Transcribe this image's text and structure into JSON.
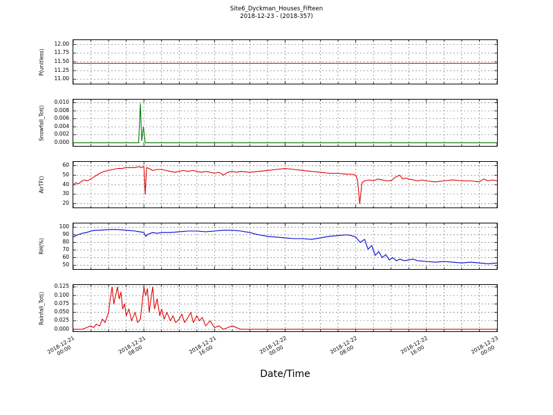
{
  "header": {
    "title": "Site6_Dyckman_Houses_Fifteen",
    "subtitle": "2018-12-23 - (2018-357)"
  },
  "x_axis": {
    "label": "Date/Time",
    "range_hours": [
      0,
      48
    ],
    "grid_interval_hours": 2,
    "major_tick_hours": [
      0,
      8,
      16,
      24,
      32,
      40,
      48
    ],
    "major_tick_labels": [
      [
        "2018-12-21",
        "00:00"
      ],
      [
        "2018-12-21",
        "08:00"
      ],
      [
        "2018-12-21",
        "16:00"
      ],
      [
        "2018-12-22",
        "00:00"
      ],
      [
        "2018-12-22",
        "08:00"
      ],
      [
        "2018-12-22",
        "16:00"
      ],
      [
        "2018-12-23",
        "00:00"
      ]
    ]
  },
  "style": {
    "background": "#ffffff",
    "frame_color": "#000000",
    "grid_color": "#787878",
    "red": "#dd0000",
    "green": "#007d00",
    "blue": "#0000d0"
  },
  "chart_data": [
    {
      "type": "line",
      "ylabel": "P(unitless)",
      "color": "#dd0000",
      "ylim": [
        10.875,
        12.125
      ],
      "yticks": [
        11.0,
        11.25,
        11.5,
        11.75,
        12.0
      ],
      "ytick_labels": [
        "11.00",
        "11.25",
        "11.50",
        "11.75",
        "12.00"
      ],
      "x": [
        0,
        48
      ],
      "values": [
        11.46,
        11.46
      ]
    },
    {
      "type": "line",
      "ylabel": "Snowfall_Tot()",
      "color": "#007d00",
      "ylim": [
        -0.0008,
        0.0108
      ],
      "yticks": [
        0.0,
        0.002,
        0.004,
        0.006,
        0.008,
        0.01
      ],
      "ytick_labels": [
        "0.000",
        "0.002",
        "0.004",
        "0.006",
        "0.008",
        "0.010"
      ],
      "x": [
        0,
        7.4,
        7.6,
        7.75,
        7.95,
        8.15,
        9,
        48
      ],
      "values": [
        0,
        0,
        0.0098,
        0.0005,
        0.004,
        0,
        0,
        0
      ]
    },
    {
      "type": "line",
      "ylabel": "AirTF()",
      "color": "#dd0000",
      "ylim": [
        16,
        64
      ],
      "yticks": [
        20,
        30,
        40,
        50,
        60
      ],
      "ytick_labels": [
        "20",
        "30",
        "40",
        "50",
        "60"
      ],
      "x": [
        0,
        0.3,
        0.6,
        1,
        1.3,
        1.6,
        2,
        2.5,
        3,
        3.5,
        4,
        4.5,
        5,
        5.5,
        6,
        6.5,
        7,
        7.4,
        7.7,
        8.0,
        8.15,
        8.3,
        8.6,
        9,
        9.5,
        10,
        10.5,
        11,
        11.5,
        12,
        12.5,
        13,
        13.5,
        14,
        14.5,
        15,
        15.5,
        16,
        16.5,
        17,
        17.5,
        18,
        18.5,
        19,
        20,
        21,
        22,
        23,
        24,
        25,
        26,
        27,
        28,
        29,
        30,
        31,
        31.5,
        32,
        32.2,
        32.45,
        32.7,
        33,
        33.5,
        34,
        34.5,
        35,
        35.5,
        36,
        36.5,
        37,
        37.3,
        37.7,
        38,
        38.5,
        39,
        39.5,
        40,
        41,
        42,
        43,
        44,
        45,
        46,
        46.5,
        47,
        47.5,
        48
      ],
      "values": [
        40,
        42,
        41,
        44,
        45,
        44,
        46,
        49,
        52,
        54,
        55,
        56,
        57,
        57,
        58,
        58,
        58,
        59,
        58,
        59,
        30,
        58,
        57,
        55,
        56,
        56,
        55,
        54,
        53,
        54,
        55,
        54,
        55,
        54,
        53,
        54,
        53,
        52,
        53,
        50,
        53,
        54,
        53,
        54,
        53,
        54,
        55,
        56,
        57,
        56,
        55,
        54,
        53,
        52,
        52,
        51,
        51,
        50,
        45,
        20,
        42,
        44,
        45,
        44,
        46,
        45,
        44,
        44,
        48,
        50,
        46,
        47,
        46,
        45,
        44,
        45,
        44,
        43,
        44,
        45,
        44,
        44,
        43,
        46,
        44,
        45,
        44
      ]
    },
    {
      "type": "line",
      "ylabel": "RH(%)",
      "color": "#0000d0",
      "ylim": [
        45,
        105
      ],
      "yticks": [
        50,
        60,
        70,
        80,
        90,
        100
      ],
      "ytick_labels": [
        "50",
        "60",
        "70",
        "80",
        "90",
        "100"
      ],
      "x": [
        0,
        0.5,
        1,
        1.5,
        2,
        2.5,
        3,
        4,
        5,
        6,
        7,
        7.5,
        8,
        8.2,
        8.5,
        9,
        9.5,
        10,
        11,
        12,
        13,
        14,
        15,
        16,
        17,
        18,
        19,
        20,
        21,
        22,
        23,
        24,
        25,
        26,
        27,
        28,
        29,
        30,
        31,
        31.5,
        32,
        32.5,
        33,
        33.4,
        33.8,
        34.2,
        34.6,
        35,
        35.4,
        35.8,
        36.2,
        36.6,
        37,
        37.5,
        38,
        38.5,
        39,
        40,
        41,
        42,
        43,
        44,
        45,
        46,
        47,
        48
      ],
      "values": [
        87,
        90,
        92,
        93,
        95,
        96,
        96,
        97,
        97,
        96,
        95,
        94,
        93,
        88,
        91,
        93,
        92,
        93,
        93,
        94,
        95,
        95,
        94,
        95,
        96,
        96,
        95,
        93,
        90,
        88,
        87,
        86,
        85,
        85,
        84,
        86,
        88,
        89,
        90,
        89,
        87,
        80,
        84,
        71,
        76,
        63,
        68,
        60,
        64,
        57,
        60,
        56,
        58,
        56,
        57,
        58,
        56,
        55,
        54,
        55,
        54,
        53,
        54,
        53,
        52,
        53
      ]
    },
    {
      "type": "line",
      "ylabel": "Rainfall_Tot()",
      "color": "#dd0000",
      "ylim": [
        -0.006,
        0.131
      ],
      "yticks": [
        0.0,
        0.025,
        0.05,
        0.075,
        0.1,
        0.125
      ],
      "ytick_labels": [
        "0.000",
        "0.025",
        "0.050",
        "0.075",
        "0.100",
        "0.125"
      ],
      "x": [
        0,
        1,
        1.5,
        2,
        2.3,
        2.6,
        3,
        3.3,
        3.6,
        4,
        4.2,
        4.4,
        4.6,
        4.8,
        5,
        5.2,
        5.4,
        5.6,
        5.8,
        6,
        6.3,
        6.6,
        7,
        7.3,
        7.6,
        8,
        8.2,
        8.4,
        8.6,
        8.8,
        9,
        9.2,
        9.5,
        9.8,
        10,
        10.3,
        10.6,
        11,
        11.3,
        11.6,
        12,
        12.3,
        12.6,
        13,
        13.3,
        13.6,
        14,
        14.3,
        14.6,
        15,
        15.5,
        16,
        16.5,
        17,
        17.5,
        18,
        19,
        20,
        24,
        30,
        36,
        42,
        48
      ],
      "values": [
        0,
        0,
        0.005,
        0.01,
        0.005,
        0.015,
        0.01,
        0.03,
        0.02,
        0.05,
        0.09,
        0.125,
        0.075,
        0.1,
        0.125,
        0.09,
        0.11,
        0.06,
        0.075,
        0.04,
        0.06,
        0.025,
        0.05,
        0.02,
        0.03,
        0.125,
        0.1,
        0.12,
        0.05,
        0.09,
        0.125,
        0.06,
        0.09,
        0.04,
        0.06,
        0.03,
        0.05,
        0.025,
        0.04,
        0.02,
        0.03,
        0.045,
        0.02,
        0.035,
        0.05,
        0.02,
        0.04,
        0.025,
        0.035,
        0.01,
        0.025,
        0.005,
        0.01,
        0,
        0.005,
        0.01,
        0,
        0,
        0,
        0,
        0,
        0,
        0
      ]
    }
  ]
}
